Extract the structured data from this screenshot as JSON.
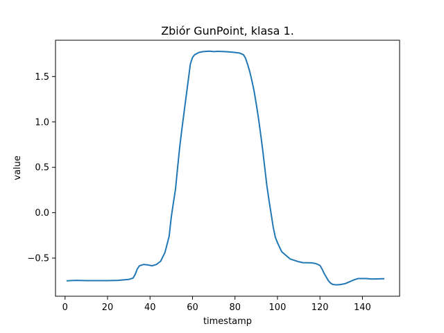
{
  "chart_data": {
    "type": "line",
    "title": "Zbiór GunPoint, klasa 1.",
    "xlabel": "timestamp",
    "ylabel": "value",
    "xlim": [
      -4.5,
      157.5
    ],
    "ylim": [
      -0.92,
      1.9
    ],
    "xticks": [
      0,
      20,
      40,
      60,
      80,
      100,
      120,
      140
    ],
    "yticks": [
      -0.5,
      0.0,
      0.5,
      1.0,
      1.5
    ],
    "ytick_labels": [
      "−0.5",
      "0.0",
      "0.5",
      "1.0",
      "1.5"
    ],
    "grid": false,
    "series": [
      {
        "color": "#1f77b4",
        "points": [
          [
            1,
            -0.75
          ],
          [
            5,
            -0.745
          ],
          [
            10,
            -0.748
          ],
          [
            15,
            -0.748
          ],
          [
            20,
            -0.748
          ],
          [
            25,
            -0.745
          ],
          [
            30,
            -0.735
          ],
          [
            32,
            -0.72
          ],
          [
            33,
            -0.68
          ],
          [
            34,
            -0.62
          ],
          [
            35,
            -0.585
          ],
          [
            37,
            -0.57
          ],
          [
            39,
            -0.575
          ],
          [
            41,
            -0.585
          ],
          [
            43,
            -0.57
          ],
          [
            45,
            -0.535
          ],
          [
            47,
            -0.44
          ],
          [
            49,
            -0.26
          ],
          [
            50,
            -0.05
          ],
          [
            51,
            0.11
          ],
          [
            52,
            0.26
          ],
          [
            53,
            0.5
          ],
          [
            54,
            0.73
          ],
          [
            55,
            0.92
          ],
          [
            56,
            1.1
          ],
          [
            57,
            1.28
          ],
          [
            58,
            1.46
          ],
          [
            59,
            1.64
          ],
          [
            60,
            1.71
          ],
          [
            61,
            1.74
          ],
          [
            63,
            1.765
          ],
          [
            65,
            1.775
          ],
          [
            68,
            1.78
          ],
          [
            70,
            1.775
          ],
          [
            72,
            1.778
          ],
          [
            75,
            1.775
          ],
          [
            78,
            1.77
          ],
          [
            80,
            1.765
          ],
          [
            82,
            1.76
          ],
          [
            84,
            1.74
          ],
          [
            85,
            1.7
          ],
          [
            86,
            1.63
          ],
          [
            87,
            1.55
          ],
          [
            88,
            1.45
          ],
          [
            89,
            1.34
          ],
          [
            90,
            1.2
          ],
          [
            91,
            1.05
          ],
          [
            92,
            0.88
          ],
          [
            93,
            0.7
          ],
          [
            94,
            0.5
          ],
          [
            95,
            0.3
          ],
          [
            96,
            0.14
          ],
          [
            97,
            -0.01
          ],
          [
            98,
            -0.16
          ],
          [
            99,
            -0.27
          ],
          [
            100,
            -0.33
          ],
          [
            101,
            -0.38
          ],
          [
            102,
            -0.43
          ],
          [
            104,
            -0.47
          ],
          [
            106,
            -0.51
          ],
          [
            108,
            -0.525
          ],
          [
            110,
            -0.54
          ],
          [
            112,
            -0.55
          ],
          [
            116,
            -0.552
          ],
          [
            118,
            -0.56
          ],
          [
            120,
            -0.58
          ],
          [
            121,
            -0.62
          ],
          [
            122,
            -0.67
          ],
          [
            123,
            -0.71
          ],
          [
            124,
            -0.75
          ],
          [
            125,
            -0.775
          ],
          [
            126,
            -0.79
          ],
          [
            128,
            -0.795
          ],
          [
            130,
            -0.79
          ],
          [
            132,
            -0.78
          ],
          [
            134,
            -0.76
          ],
          [
            136,
            -0.74
          ],
          [
            138,
            -0.725
          ],
          [
            142,
            -0.725
          ],
          [
            144,
            -0.73
          ],
          [
            146,
            -0.73
          ],
          [
            148,
            -0.728
          ],
          [
            150,
            -0.727
          ]
        ]
      }
    ]
  }
}
